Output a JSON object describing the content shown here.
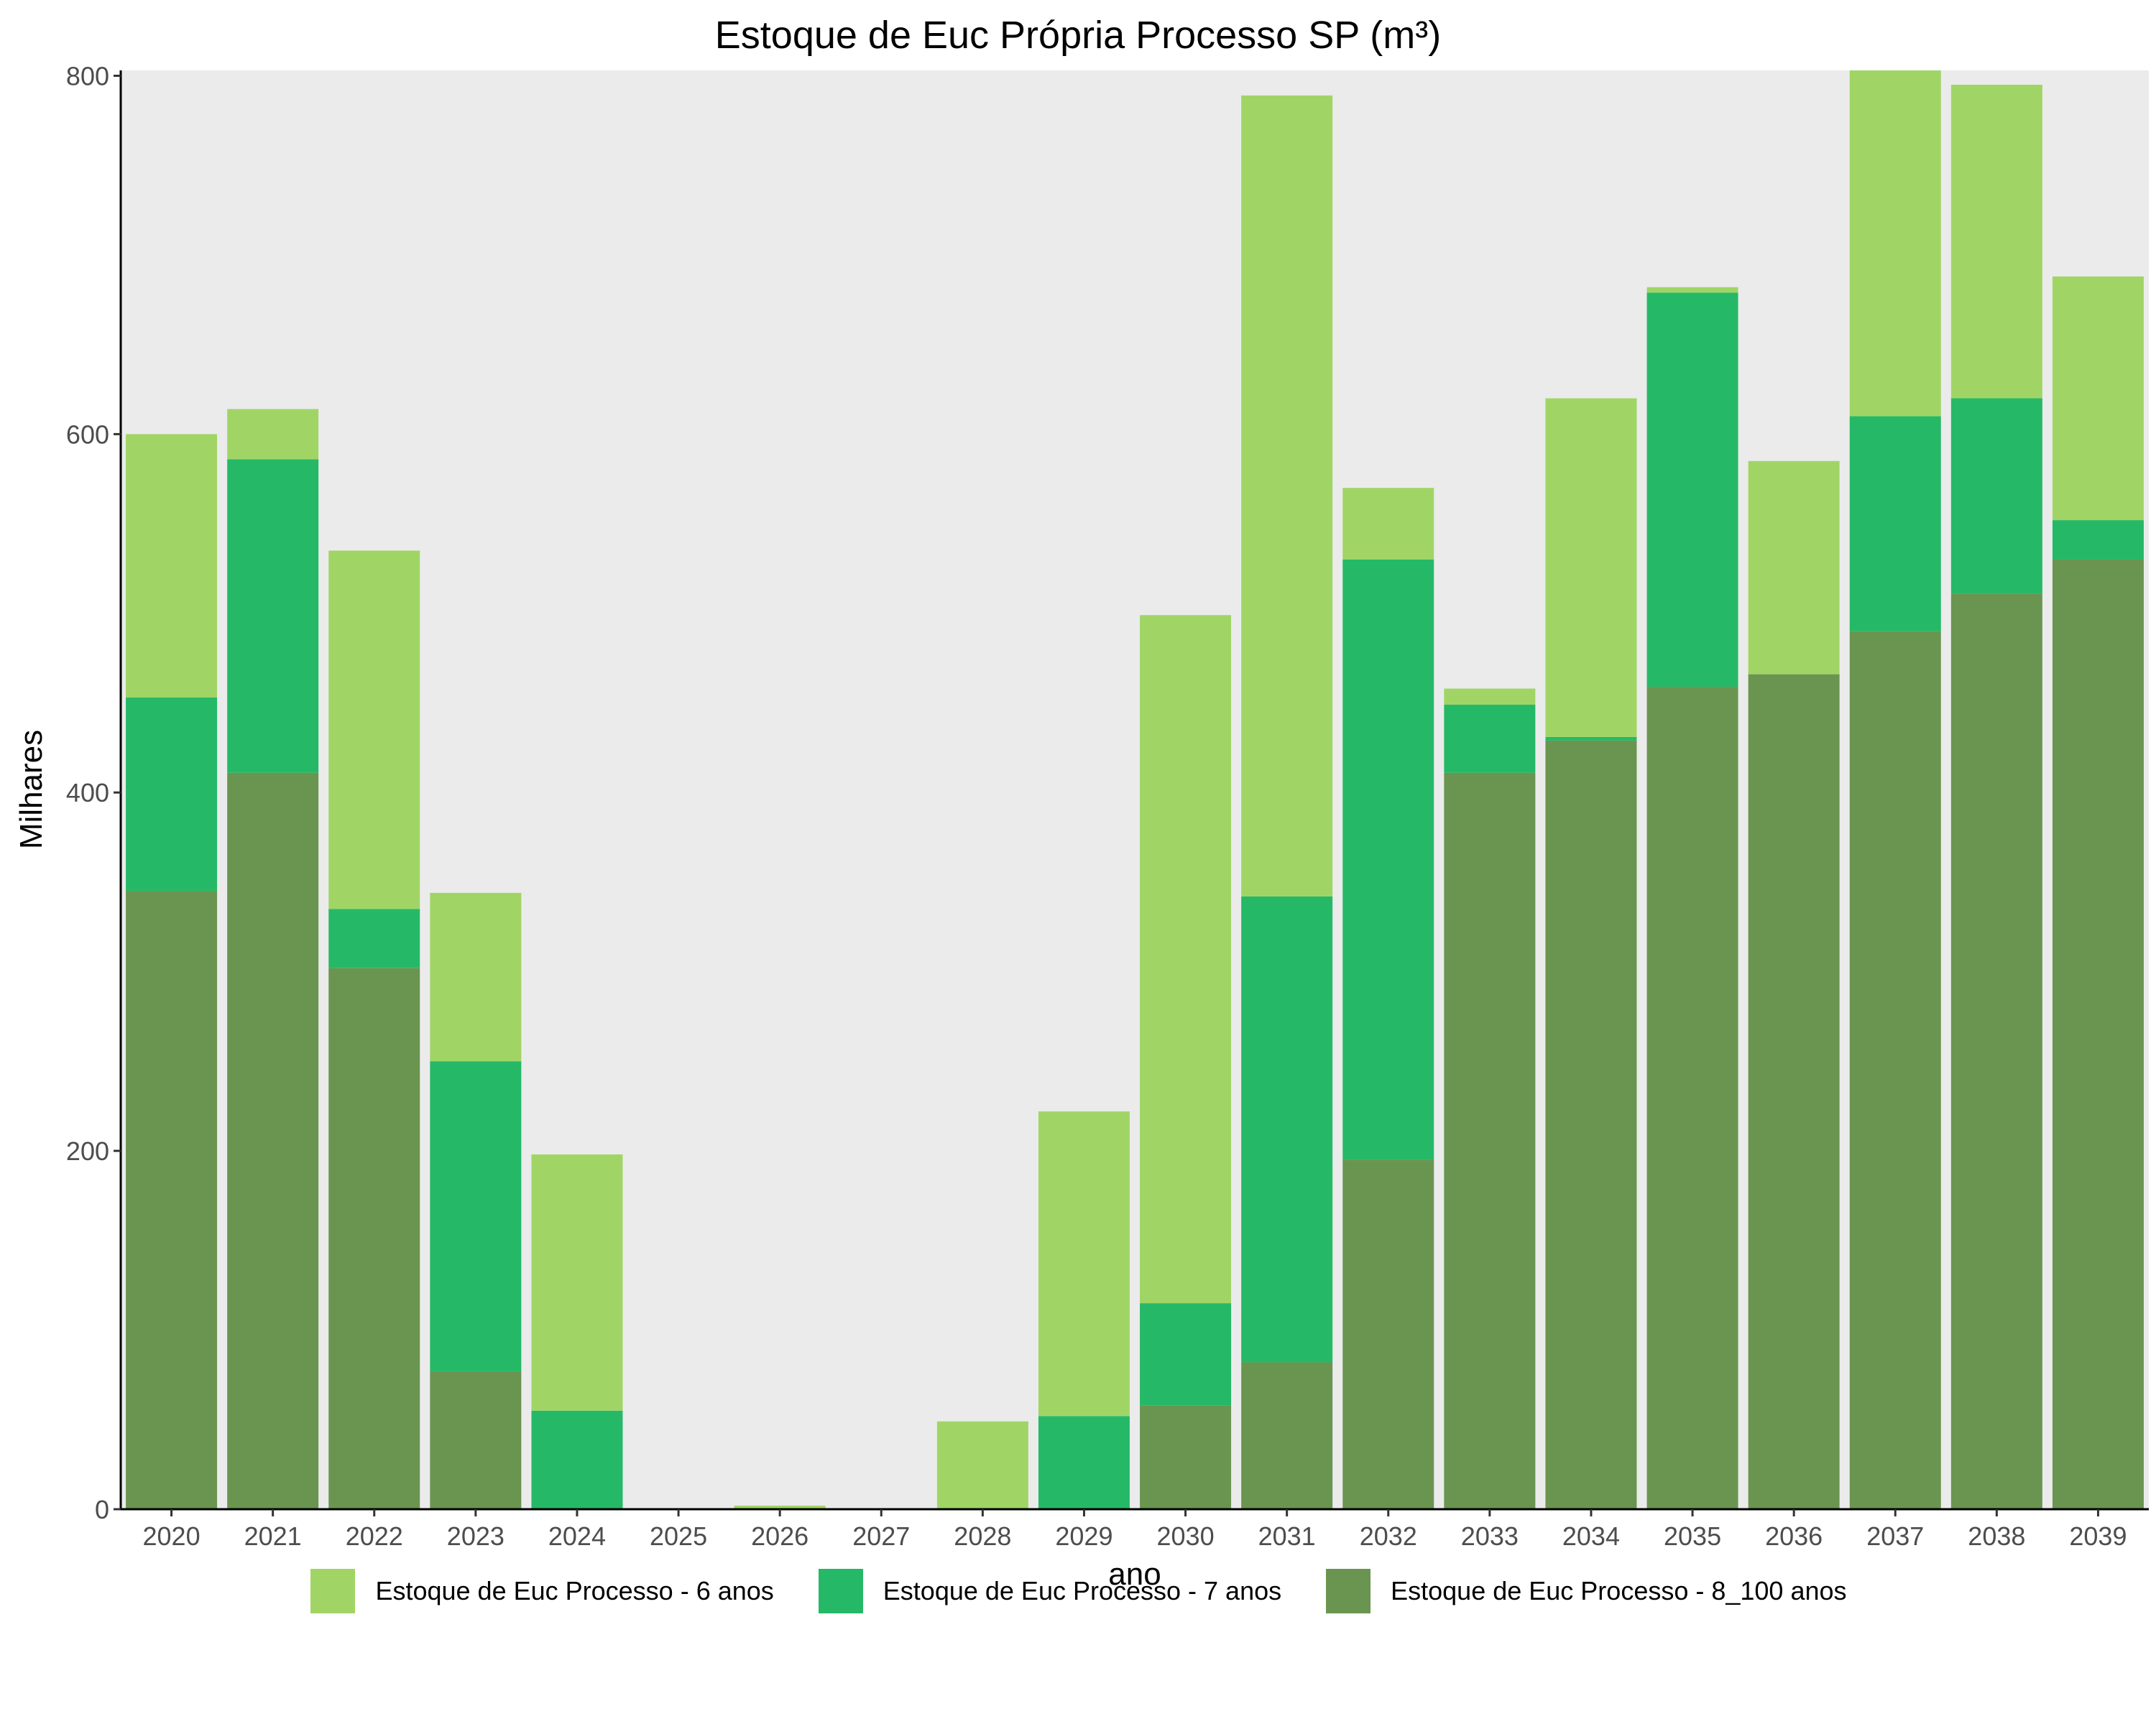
{
  "chart_data": {
    "type": "bar",
    "stacked": true,
    "title": "Estoque de Euc Própria Processo SP (m³)",
    "xlabel": "ano",
    "ylabel": "Milhares",
    "ylim": [
      0,
      803
    ],
    "yticks": [
      0,
      200,
      400,
      600,
      800
    ],
    "grid": false,
    "legend_position": "bottom",
    "categories": [
      "2020",
      "2021",
      "2022",
      "2023",
      "2024",
      "2025",
      "2026",
      "2027",
      "2028",
      "2029",
      "2030",
      "2031",
      "2032",
      "2033",
      "2034",
      "2035",
      "2036",
      "2037",
      "2038",
      "2039"
    ],
    "series": [
      {
        "name": "Estoque de Euc Processo - 8_100 anos",
        "color": "#6a9550",
        "values": [
          345,
          411,
          302,
          77,
          0,
          0,
          0,
          0,
          0,
          0,
          58,
          82,
          195,
          411,
          429,
          459,
          466,
          490,
          511,
          530
        ]
      },
      {
        "name": "Estoque de Euc Processo - 7 anos",
        "color": "#25b967",
        "values": [
          108,
          175,
          33,
          173,
          55,
          0,
          0,
          0,
          0,
          52,
          57,
          260,
          335,
          38,
          2,
          220,
          0,
          120,
          109,
          22
        ]
      },
      {
        "name": "Estoque de Euc Processo - 6 anos",
        "color": "#a0d566",
        "values": [
          147,
          28,
          200,
          94,
          143,
          0,
          2,
          0,
          49,
          170,
          384,
          447,
          40,
          9,
          189,
          3,
          119,
          193,
          175,
          136
        ]
      }
    ]
  },
  "legend_order": [
    2,
    1,
    0
  ]
}
